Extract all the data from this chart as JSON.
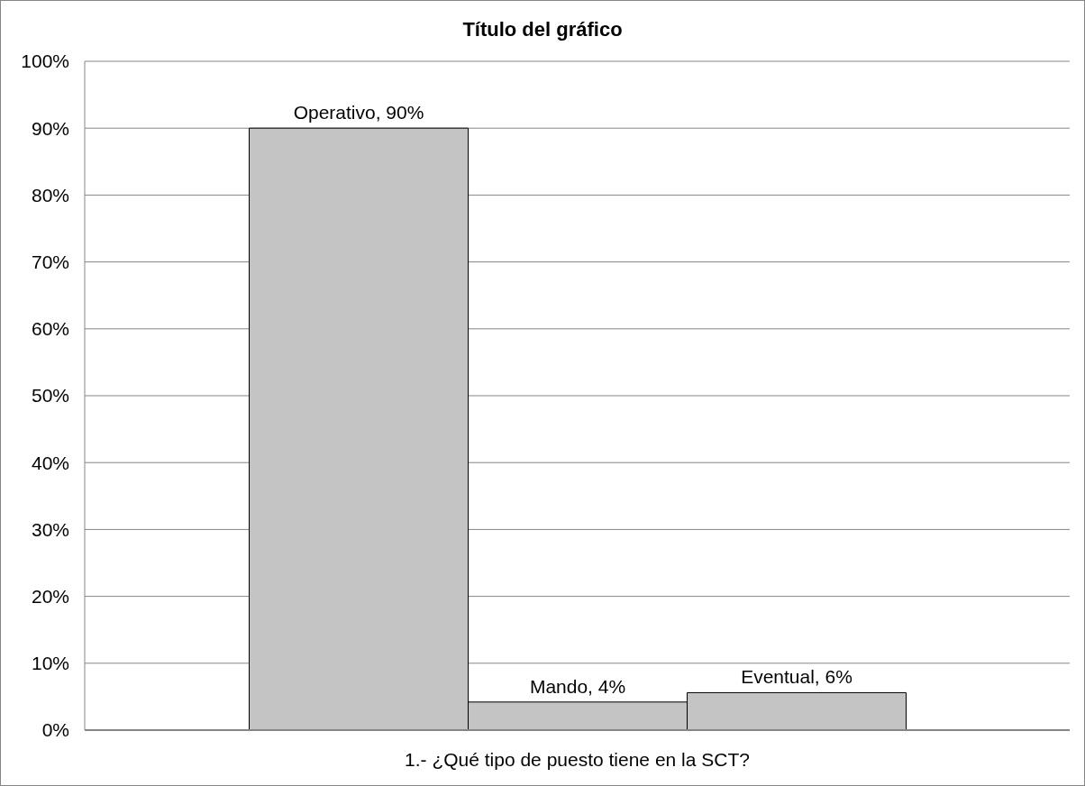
{
  "chart_data": {
    "type": "bar",
    "title": "Título del gráfico",
    "categories": [
      "1.- ¿Qué tipo de puesto tiene en la SCT?"
    ],
    "series": [
      {
        "color": "#c4c4c4",
        "values": [
          90
        ],
        "value_labels": [
          "Operativo, 90%"
        ]
      },
      {
        "color": "#c4c4c4",
        "values": [
          4.2
        ],
        "value_labels": [
          "Mando, 4%"
        ]
      },
      {
        "color": "#c4c4c4",
        "values": [
          5.6
        ],
        "value_labels": [
          "Eventual, 6%"
        ]
      }
    ],
    "ylim": [
      0,
      100
    ],
    "yticks": [
      {
        "value": 0,
        "label": "0%"
      },
      {
        "value": 10,
        "label": "10%"
      },
      {
        "value": 20,
        "label": "20%"
      },
      {
        "value": 30,
        "label": "30%"
      },
      {
        "value": 40,
        "label": "40%"
      },
      {
        "value": 50,
        "label": "50%"
      },
      {
        "value": 60,
        "label": "60%"
      },
      {
        "value": 70,
        "label": "70%"
      },
      {
        "value": 80,
        "label": "80%"
      },
      {
        "value": 90,
        "label": "90%"
      },
      {
        "value": 100,
        "label": "100%"
      }
    ],
    "grid": "y"
  }
}
